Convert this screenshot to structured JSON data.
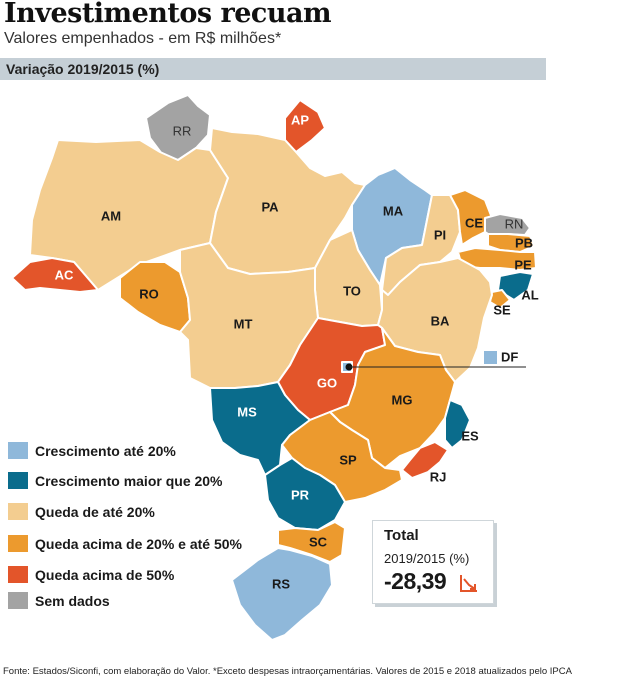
{
  "header": {
    "title": "Investimentos recuam",
    "subtitle": "Valores empenhados - em R$ milhões*",
    "band_label": "Variação 2019/2015 (%)"
  },
  "colors": {
    "growth_up_to_20": "#8fb8da",
    "growth_above_20": "#0a6c8c",
    "drop_up_to_20": "#f3cd90",
    "drop_20_to_50": "#ec9a2e",
    "drop_above_50": "#e3552a",
    "no_data": "#a3a3a3"
  },
  "states": [
    {
      "code": "RR",
      "category": "no_data"
    },
    {
      "code": "AP",
      "category": "drop_above_50"
    },
    {
      "code": "AM",
      "category": "drop_up_to_20"
    },
    {
      "code": "PA",
      "category": "drop_up_to_20"
    },
    {
      "code": "MA",
      "category": "growth_up_to_20"
    },
    {
      "code": "CE",
      "category": "drop_20_to_50"
    },
    {
      "code": "RN",
      "category": "no_data"
    },
    {
      "code": "PB",
      "category": "drop_20_to_50"
    },
    {
      "code": "PE",
      "category": "drop_20_to_50"
    },
    {
      "code": "PI",
      "category": "drop_up_to_20"
    },
    {
      "code": "AL",
      "category": "growth_above_20"
    },
    {
      "code": "SE",
      "category": "drop_20_to_50"
    },
    {
      "code": "AC",
      "category": "drop_above_50"
    },
    {
      "code": "RO",
      "category": "drop_20_to_50"
    },
    {
      "code": "TO",
      "category": "drop_up_to_20"
    },
    {
      "code": "BA",
      "category": "drop_up_to_20"
    },
    {
      "code": "MT",
      "category": "drop_up_to_20"
    },
    {
      "code": "DF",
      "category": "growth_up_to_20"
    },
    {
      "code": "GO",
      "category": "drop_above_50"
    },
    {
      "code": "MG",
      "category": "drop_20_to_50"
    },
    {
      "code": "MS",
      "category": "growth_above_20"
    },
    {
      "code": "ES",
      "category": "growth_above_20"
    },
    {
      "code": "SP",
      "category": "drop_20_to_50"
    },
    {
      "code": "RJ",
      "category": "drop_above_50"
    },
    {
      "code": "PR",
      "category": "growth_above_20"
    },
    {
      "code": "SC",
      "category": "drop_20_to_50"
    },
    {
      "code": "RS",
      "category": "growth_up_to_20"
    }
  ],
  "legend": [
    {
      "label": "Crescimento até 20%",
      "category": "growth_up_to_20"
    },
    {
      "label": "Crescimento maior que 20%",
      "category": "growth_above_20"
    },
    {
      "label": "Queda de até 20%",
      "category": "drop_up_to_20"
    },
    {
      "label": "Queda acima de 20% e até 50%",
      "category": "drop_20_to_50"
    },
    {
      "label": "Queda acima de 50%",
      "category": "drop_above_50"
    },
    {
      "label": "Sem dados",
      "category": "no_data"
    }
  ],
  "total": {
    "label": "Total",
    "period": "2019/2015 (%)",
    "value": "-28,39",
    "trend_icon": "trend-down-icon"
  },
  "footer": "Fonte: Estados/Siconfi, com elaboração do Valor. *Exceto despesas intraorçamentárias. Valores de 2015 e 2018 atualizados pelo IPCA"
}
